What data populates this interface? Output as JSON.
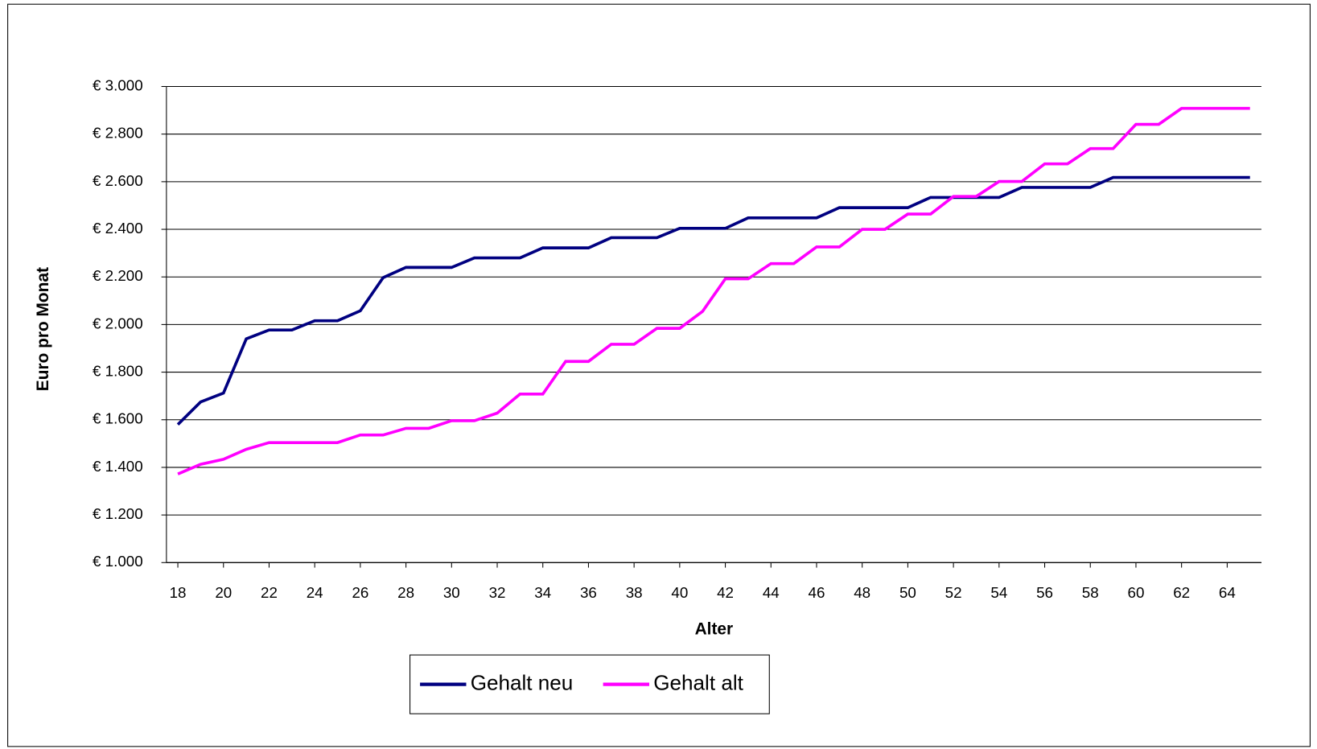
{
  "chart_data": {
    "type": "line",
    "x_label": "Alter",
    "y_label": "Euro pro Monat",
    "x": [
      18,
      19,
      20,
      21,
      22,
      23,
      24,
      25,
      26,
      27,
      28,
      29,
      30,
      31,
      32,
      33,
      34,
      35,
      36,
      37,
      38,
      39,
      40,
      41,
      42,
      43,
      44,
      45,
      46,
      47,
      48,
      49,
      50,
      51,
      52,
      53,
      54,
      55,
      56,
      57,
      58,
      59,
      60,
      61,
      62,
      63,
      64,
      65
    ],
    "xlim": [
      17.5,
      65.5
    ],
    "xticks": [
      18,
      20,
      22,
      24,
      26,
      28,
      30,
      32,
      34,
      36,
      38,
      40,
      42,
      44,
      46,
      48,
      50,
      52,
      54,
      56,
      58,
      60,
      62,
      64
    ],
    "ylim": [
      1000,
      3000
    ],
    "yticks": [
      {
        "value": 1000,
        "label": "€ 1.000"
      },
      {
        "value": 1200,
        "label": "€ 1.200"
      },
      {
        "value": 1400,
        "label": "€ 1.400"
      },
      {
        "value": 1600,
        "label": "€ 1.600"
      },
      {
        "value": 1800,
        "label": "€ 1.800"
      },
      {
        "value": 2000,
        "label": "€ 2.000"
      },
      {
        "value": 2200,
        "label": "€ 2.200"
      },
      {
        "value": 2400,
        "label": "€ 2.400"
      },
      {
        "value": 2600,
        "label": "€ 2.600"
      },
      {
        "value": 2800,
        "label": "€ 2.800"
      },
      {
        "value": 3000,
        "label": "€ 3.000"
      }
    ],
    "grid": true,
    "legend": "bottom",
    "series": [
      {
        "name": "Gehalt neu",
        "color": "#000080",
        "values": [
          1580,
          1675,
          1712,
          1940,
          1977,
          1977,
          2016,
          2016,
          2058,
          2197,
          2240,
          2240,
          2240,
          2280,
          2280,
          2280,
          2322,
          2322,
          2322,
          2365,
          2365,
          2365,
          2404,
          2404,
          2404,
          2448,
          2448,
          2448,
          2448,
          2491,
          2491,
          2491,
          2491,
          2534,
          2534,
          2534,
          2534,
          2576,
          2576,
          2576,
          2576,
          2618,
          2618,
          2618,
          2618,
          2618,
          2618,
          2618
        ]
      },
      {
        "name": "Gehalt alt",
        "color": "#ff00ff",
        "values": [
          1372,
          1413,
          1434,
          1476,
          1504,
          1504,
          1504,
          1504,
          1536,
          1536,
          1564,
          1564,
          1596,
          1596,
          1628,
          1708,
          1708,
          1845,
          1845,
          1917,
          1917,
          1984,
          1984,
          2055,
          2192,
          2192,
          2256,
          2256,
          2326,
          2326,
          2400,
          2400,
          2464,
          2464,
          2538,
          2538,
          2601,
          2601,
          2675,
          2675,
          2739,
          2739,
          2841,
          2841,
          2908,
          2908,
          2908,
          2908
        ]
      }
    ]
  }
}
